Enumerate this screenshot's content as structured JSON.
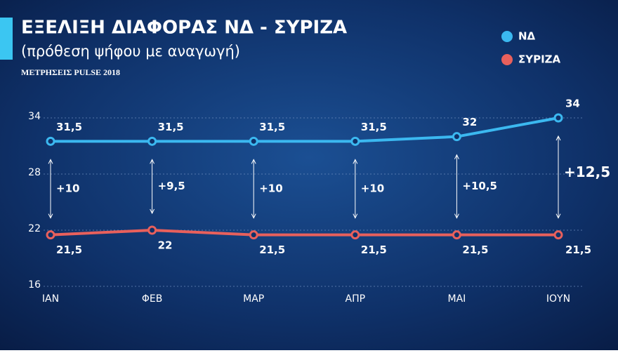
{
  "chart_data": {
    "type": "line",
    "title": "ΕΞΕΛΙΞΗ ΔΙΑΦΟΡΑΣ ΝΔ - ΣΥΡΙΖΑ",
    "subtitle": "(πρόθεση ψήφου με αναγωγή)",
    "source": "ΜΕΤΡΗΣΕΙΣ PULSE 2018",
    "categories": [
      "ΙΑΝ",
      "ΦΕΒ",
      "ΜΑΡ",
      "ΑΠΡ",
      "ΜΑΙ",
      "ΙΟΥΝ"
    ],
    "series": [
      {
        "name": "ΝΔ",
        "color": "#3bb8f0",
        "values": [
          31.5,
          31.5,
          31.5,
          31.5,
          32,
          34
        ],
        "value_labels": [
          "31,5",
          "31,5",
          "31,5",
          "31,5",
          "32",
          "34"
        ]
      },
      {
        "name": "ΣΥΡΙΖΑ",
        "color": "#e8605c",
        "values": [
          21.5,
          22,
          21.5,
          21.5,
          21.5,
          21.5
        ],
        "value_labels": [
          "21,5",
          "22",
          "21,5",
          "21,5",
          "21,5",
          "21,5"
        ]
      }
    ],
    "difference_labels": [
      "+10",
      "+9,5",
      "+10",
      "+10",
      "+10,5",
      "+12,5"
    ],
    "ylim": [
      16,
      34
    ],
    "yticks": [
      16,
      22,
      28,
      34
    ],
    "grid": true,
    "legend": "top-right"
  }
}
